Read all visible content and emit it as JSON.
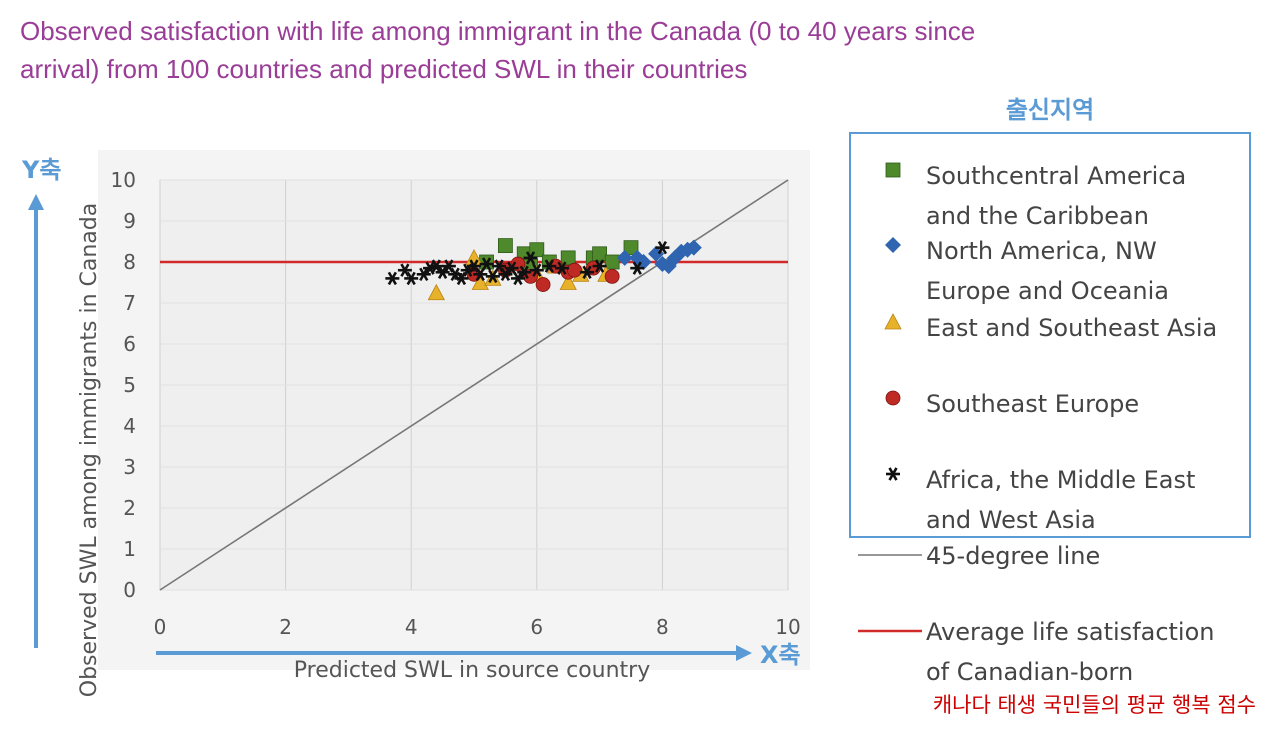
{
  "title_lines": [
    "Observed satisfaction with life among immigrant in the Canada (0 to 40 years since",
    "arrival) from 100 countries and predicted SWL in their countries"
  ],
  "annotations": {
    "y_axis_tag": "Y축",
    "x_axis_tag": "X축",
    "legend_header": "출신지역",
    "red_line_note": "캐나다 태생 국민들의 평균 행복 점수"
  },
  "colors": {
    "title": "#9a3d97",
    "annotation_blue": "#5b9bd5",
    "red_line": "#d12a2a",
    "diag_line": "#777777",
    "plot_bg": "#efefef",
    "note_red": "#cc0000"
  },
  "legend": [
    {
      "lines": [
        "Southcentral America",
        "and the Caribbean"
      ],
      "icon": "square-icon",
      "color": "#4e8a2c"
    },
    {
      "lines": [
        "North America, NW",
        "Europe and Oceania"
      ],
      "icon": "diamond-icon",
      "color": "#2e64b0"
    },
    {
      "lines": [
        "East and Southeast Asia"
      ],
      "icon": "triangle-icon",
      "color": "#e8b12a"
    },
    {
      "lines": [
        "Southeast Europe"
      ],
      "icon": "circle-icon",
      "color": "#c02a24"
    },
    {
      "lines": [
        "Africa, the Middle East",
        "and West Asia"
      ],
      "icon": "star-icon",
      "color": "#111111"
    }
  ],
  "legend_lines": [
    {
      "label": "45-degree line",
      "color": "#777777"
    },
    {
      "lines": [
        "Average life satisfaction",
        "of Canadian-born"
      ],
      "color": "#d12a2a"
    }
  ],
  "chart_data": {
    "type": "scatter",
    "title": "Observed satisfaction with life among immigrant in the Canada (0 to 40 years since arrival) from 100 countries and predicted SWL in their countries",
    "xlabel": "Predicted SWL in source country",
    "ylabel": "Observed SWL among immigrants in  Canada",
    "xlim": [
      0,
      10
    ],
    "ylim": [
      0,
      10
    ],
    "x_ticks": [
      0,
      2,
      4,
      6,
      8,
      10
    ],
    "y_ticks": [
      0,
      1,
      2,
      3,
      4,
      5,
      6,
      7,
      8,
      9,
      10
    ],
    "reference_lines": [
      {
        "name": "45-degree line",
        "type": "diagonal",
        "from": [
          0,
          0
        ],
        "to": [
          10,
          10
        ]
      },
      {
        "name": "Average life satisfaction of Canadian-born",
        "type": "horizontal",
        "y": 8.0
      }
    ],
    "series": [
      {
        "name": "Southcentral America and the Caribbean",
        "marker": "square",
        "points": [
          [
            5.5,
            8.4
          ],
          [
            5.8,
            8.2
          ],
          [
            6.0,
            8.3
          ],
          [
            6.5,
            8.1
          ],
          [
            6.9,
            8.1
          ],
          [
            7.0,
            8.2
          ],
          [
            7.5,
            8.35
          ],
          [
            5.2,
            8.0
          ],
          [
            6.2,
            8.0
          ],
          [
            7.2,
            8.0
          ],
          [
            5.9,
            7.9
          ]
        ]
      },
      {
        "name": "North America, NW Europe and Oceania",
        "marker": "diamond",
        "points": [
          [
            7.4,
            8.1
          ],
          [
            7.6,
            8.1
          ],
          [
            7.7,
            8.0
          ],
          [
            7.9,
            8.2
          ],
          [
            8.0,
            7.95
          ],
          [
            8.1,
            7.9
          ],
          [
            8.2,
            8.1
          ],
          [
            8.3,
            8.25
          ],
          [
            8.4,
            8.3
          ],
          [
            8.5,
            8.35
          ]
        ]
      },
      {
        "name": "East and Southeast Asia",
        "marker": "triangle",
        "points": [
          [
            4.4,
            7.25
          ],
          [
            5.0,
            8.1
          ],
          [
            5.1,
            7.5
          ],
          [
            5.3,
            7.6
          ],
          [
            6.0,
            7.7
          ],
          [
            6.5,
            7.5
          ],
          [
            6.7,
            7.7
          ],
          [
            7.1,
            7.7
          ],
          [
            6.3,
            7.9
          ]
        ]
      },
      {
        "name": "Southeast Europe",
        "marker": "circle",
        "points": [
          [
            5.0,
            7.7
          ],
          [
            5.5,
            7.8
          ],
          [
            5.9,
            7.65
          ],
          [
            6.1,
            7.45
          ],
          [
            6.3,
            7.9
          ],
          [
            6.5,
            7.75
          ],
          [
            6.6,
            7.8
          ],
          [
            6.9,
            7.85
          ],
          [
            7.2,
            7.65
          ],
          [
            5.7,
            7.95
          ]
        ]
      },
      {
        "name": "Africa, the Middle East and West Asia",
        "marker": "star",
        "points": [
          [
            3.7,
            7.6
          ],
          [
            3.9,
            7.8
          ],
          [
            4.0,
            7.6
          ],
          [
            4.2,
            7.7
          ],
          [
            4.3,
            7.85
          ],
          [
            4.5,
            7.75
          ],
          [
            4.6,
            7.9
          ],
          [
            4.7,
            7.7
          ],
          [
            4.8,
            7.6
          ],
          [
            4.9,
            7.8
          ],
          [
            5.0,
            7.9
          ],
          [
            5.1,
            7.7
          ],
          [
            5.2,
            7.95
          ],
          [
            5.3,
            7.65
          ],
          [
            5.4,
            7.9
          ],
          [
            5.5,
            7.7
          ],
          [
            5.6,
            7.85
          ],
          [
            5.7,
            7.6
          ],
          [
            5.9,
            8.1
          ],
          [
            6.0,
            7.8
          ],
          [
            6.2,
            7.9
          ],
          [
            6.4,
            7.85
          ],
          [
            6.8,
            7.75
          ],
          [
            7.0,
            7.9
          ],
          [
            7.6,
            7.85
          ],
          [
            8.0,
            8.35
          ],
          [
            4.4,
            7.9
          ],
          [
            5.8,
            7.75
          ]
        ]
      }
    ]
  }
}
